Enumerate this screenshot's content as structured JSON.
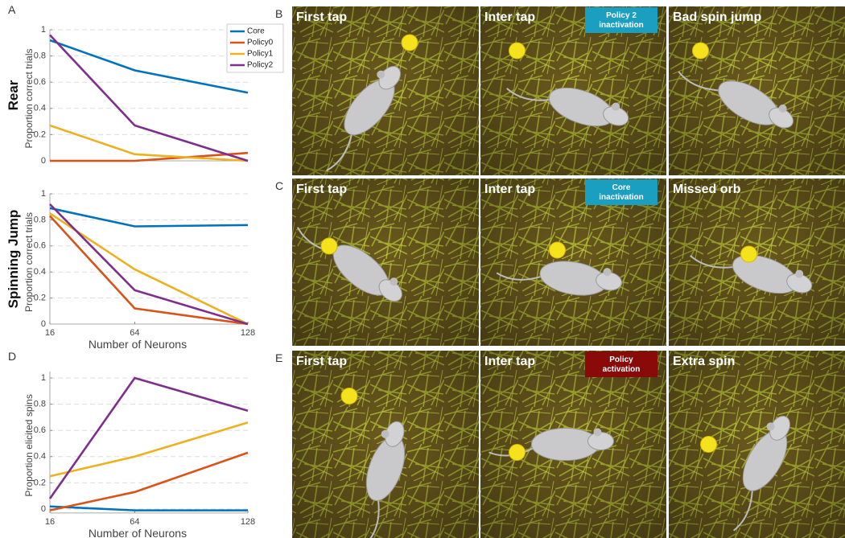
{
  "chart_data": [
    {
      "type": "line",
      "panel_label": "A",
      "title": "Rear",
      "y_label": "Proportion correct trials",
      "x": [
        16,
        64,
        128
      ],
      "xlim": [
        16,
        128
      ],
      "ylim": [
        0,
        1
      ],
      "yticks": [
        0,
        0.2,
        0.4,
        0.6,
        0.8,
        1
      ],
      "grid": true,
      "legend": "upper right",
      "series": [
        {
          "name": "Core",
          "color": "#0072bd",
          "values": [
            0.92,
            0.69,
            0.52
          ]
        },
        {
          "name": "Policy0",
          "color": "#d95319",
          "values": [
            0,
            0,
            0.06
          ]
        },
        {
          "name": "Policy1",
          "color": "#edb120",
          "values": [
            0.27,
            0.05,
            0
          ]
        },
        {
          "name": "Policy2",
          "color": "#7e2f8e",
          "values": [
            0.96,
            0.27,
            0
          ]
        }
      ]
    },
    {
      "type": "line",
      "title": "Spinning Jump",
      "y_label": "Proportion correct trials",
      "x_label": "Number of Neurons",
      "x": [
        16,
        64,
        128
      ],
      "xlim": [
        16,
        128
      ],
      "xticks": [
        16,
        64,
        128
      ],
      "ylim": [
        0,
        1
      ],
      "yticks": [
        0,
        0.2,
        0.4,
        0.6,
        0.8,
        1
      ],
      "grid": true,
      "series": [
        {
          "name": "Core",
          "color": "#0072bd",
          "values": [
            0.89,
            0.75,
            0.76
          ]
        },
        {
          "name": "Policy0",
          "color": "#d95319",
          "values": [
            0.83,
            0.12,
            0
          ]
        },
        {
          "name": "Policy1",
          "color": "#edb120",
          "values": [
            0.85,
            0.42,
            0
          ]
        },
        {
          "name": "Policy2",
          "color": "#7e2f8e",
          "values": [
            0.92,
            0.26,
            0
          ]
        }
      ]
    },
    {
      "type": "line",
      "panel_label": "D",
      "y_label": "Proportion elicited spins",
      "x_label": "Number of Neurons",
      "x": [
        16,
        64,
        128
      ],
      "xlim": [
        16,
        128
      ],
      "xticks": [
        16,
        64,
        128
      ],
      "ylim": [
        -0.03,
        1.05
      ],
      "yticks": [
        0,
        0.2,
        0.4,
        0.6,
        0.8,
        1
      ],
      "grid": true,
      "series": [
        {
          "name": "Core",
          "color": "#0072bd",
          "values": [
            0.02,
            -0.01,
            -0.01
          ]
        },
        {
          "name": "Policy0",
          "color": "#d95319",
          "values": [
            -0.01,
            0.13,
            0.43
          ]
        },
        {
          "name": "Policy1",
          "color": "#edb120",
          "values": [
            0.25,
            0.4,
            0.66
          ]
        },
        {
          "name": "Policy2",
          "color": "#7e2f8e",
          "values": [
            0.08,
            1.0,
            0.75
          ]
        }
      ]
    }
  ],
  "image_rows": [
    {
      "letter": "B",
      "panels": [
        {
          "caption": "First tap"
        },
        {
          "caption": "Inter tap",
          "badge": [
            "Policy 2",
            "inactivation"
          ],
          "badge_color": "#1a9fc0"
        },
        {
          "caption": "Bad spin jump"
        }
      ]
    },
    {
      "letter": "C",
      "panels": [
        {
          "caption": "First tap"
        },
        {
          "caption": "Inter tap",
          "badge": [
            "Core",
            "inactivation"
          ],
          "badge_color": "#1a9fc0"
        },
        {
          "caption": "Missed orb"
        }
      ]
    },
    {
      "letter": "E",
      "panels": [
        {
          "caption": "First tap"
        },
        {
          "caption": "Inter tap",
          "badge": [
            "Policy",
            "activation"
          ],
          "badge_color": "#8a0a0a"
        },
        {
          "caption": "Extra spin"
        }
      ]
    }
  ]
}
